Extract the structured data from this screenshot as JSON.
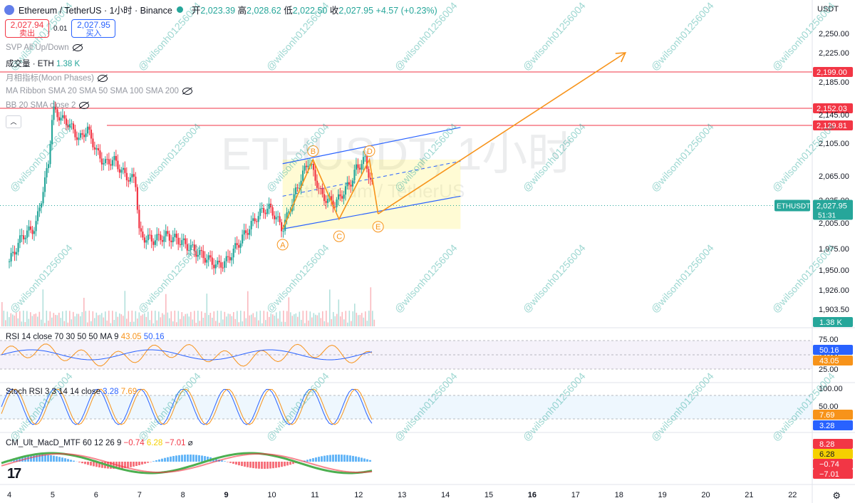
{
  "header": {
    "symbol": "Ethereum / TetherUS · 1小时 · Binance",
    "open_label": "开",
    "open": "2,023.39",
    "high_label": "高",
    "high": "2,028.62",
    "low_label": "低",
    "low": "2,022.50",
    "close_label": "收",
    "close": "2,027.95",
    "change": "+4.57 (+0.23%)"
  },
  "trade": {
    "sell_price": "2,027.94",
    "sell_label": "卖出",
    "spread": "0.01",
    "buy_price": "2,027.95",
    "buy_label": "买入"
  },
  "indicators": {
    "svp": "SVP All Up/Down",
    "volume_label": "成交量 · ETH",
    "volume_value": "1.38 K",
    "moon": "月相指标(Moon Phases)",
    "ma_ribbon": "MA Ribbon SMA 20 SMA 50 SMA 100 SMA 200",
    "bb": "BB 20 SMA close 2"
  },
  "watermark": {
    "symbol": "ETHUSDT, 1小时",
    "name": "Ethereum / TetherUS",
    "user": "@wilsonh01256004"
  },
  "currency": "USDT",
  "rsi": {
    "label": "RSI 14 close 70 30 50 50 MA 9",
    "v1": "43.05",
    "v2": "50.16"
  },
  "stoch": {
    "label": "Stoch RSI 3 3 14 14 close",
    "v1": "3.28",
    "v2": "7.69"
  },
  "macd": {
    "label": "CM_Ult_MacD_MTF 60 12 26 9",
    "v1": "−0.74",
    "v2": "6.28",
    "v3": "−7.01"
  },
  "chart_data": {
    "type": "candlestick",
    "symbol": "ETHUSDT",
    "timeframe": "1小时",
    "exchange": "Binance",
    "x_ticks": [
      "4",
      "5",
      "6",
      "7",
      "8",
      "9",
      "10",
      "11",
      "12",
      "13",
      "14",
      "15",
      "16",
      "17",
      "18",
      "19",
      "20",
      "21",
      "22"
    ],
    "y_ticks": [
      "2,250.00",
      "2,225.00",
      "2,185.00",
      "2,145.00",
      "2,105.00",
      "2,065.00",
      "2,035.00",
      "2,005.00",
      "1,975.00",
      "1,950.00",
      "1,926.00",
      "1,903.50"
    ],
    "ylim": [
      1890,
      2275
    ],
    "last_price": 2027.95,
    "last_price_label": "ETHUSDT",
    "last_price_value": "2,027.95",
    "countdown": "51:31",
    "volume_last": "1.38 K",
    "approx_close_path": [
      [
        4.0,
        1960
      ],
      [
        4.3,
        1990
      ],
      [
        4.6,
        2000
      ],
      [
        4.9,
        2080
      ],
      [
        5.0,
        2150
      ],
      [
        5.2,
        2140
      ],
      [
        5.4,
        2130
      ],
      [
        5.6,
        2110
      ],
      [
        5.8,
        2125
      ],
      [
        6.0,
        2095
      ],
      [
        6.2,
        2080
      ],
      [
        6.4,
        2085
      ],
      [
        6.6,
        2070
      ],
      [
        6.8,
        2060
      ],
      [
        6.9,
        2065
      ],
      [
        7.0,
        1990
      ],
      [
        7.3,
        1985
      ],
      [
        7.6,
        1990
      ],
      [
        7.9,
        1985
      ],
      [
        8.2,
        1975
      ],
      [
        8.5,
        1965
      ],
      [
        8.8,
        1955
      ],
      [
        9.0,
        1960
      ],
      [
        9.2,
        1975
      ],
      [
        9.4,
        1990
      ],
      [
        9.6,
        2005
      ],
      [
        9.8,
        2020
      ],
      [
        10.0,
        2025
      ],
      [
        10.3,
        1998
      ],
      [
        10.6,
        2045
      ],
      [
        10.9,
        2085
      ],
      [
        11.0,
        2070
      ],
      [
        11.2,
        2040
      ],
      [
        11.5,
        2030
      ],
      [
        11.7,
        2045
      ],
      [
        11.9,
        2060
      ],
      [
        12.0,
        2075
      ],
      [
        12.2,
        2085
      ],
      [
        12.4,
        2045
      ],
      [
        12.5,
        2028
      ]
    ],
    "horizontal_lines": [
      {
        "price": 2199.0,
        "label": "2,199.00"
      },
      {
        "price": 2152.03,
        "label": "2,152.03"
      },
      {
        "price": 2129.81,
        "label": "2,129.81"
      }
    ],
    "pattern_points": [
      {
        "label": "A",
        "x": 10.3,
        "y": 1998
      },
      {
        "label": "B",
        "x": 11.0,
        "y": 2085
      },
      {
        "label": "C",
        "x": 11.6,
        "y": 2010
      },
      {
        "label": "D",
        "x": 12.3,
        "y": 2085
      },
      {
        "label": "E",
        "x": 12.5,
        "y": 2017
      }
    ],
    "projection_target": {
      "x": 18.2,
      "y": 2225
    },
    "rsi_levels": [
      75,
      50,
      25
    ],
    "stoch_levels": [
      100,
      50,
      0
    ],
    "macd_values": [
      "8.28",
      "6.28",
      "−0.74",
      "−7.01"
    ],
    "colors": {
      "up": "#26a69a",
      "down": "#f23645",
      "pattern": "#f7931a",
      "channel": "#2962ff",
      "hline": "#f23645",
      "rsi": "#7e57c2"
    }
  }
}
